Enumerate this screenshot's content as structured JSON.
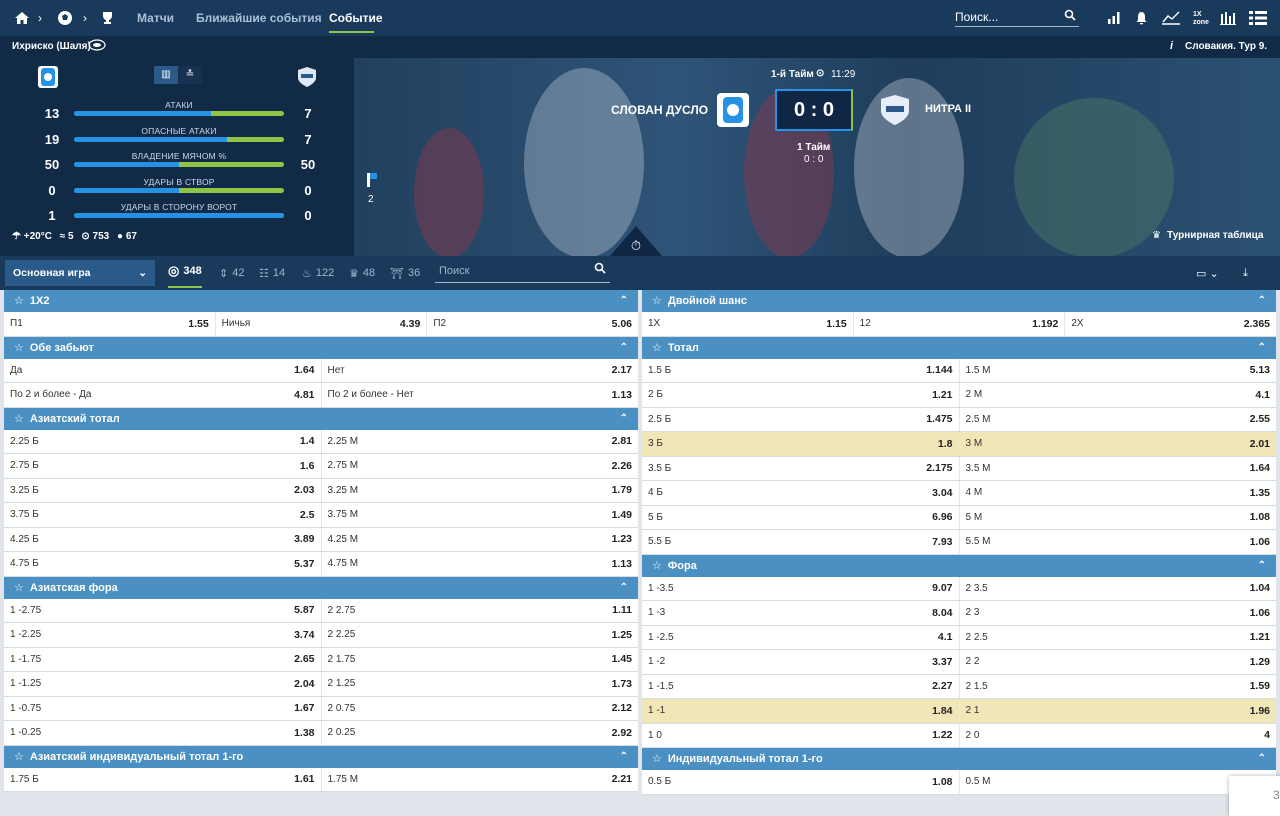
{
  "nav": {
    "links": [
      "Матчи",
      "Ближайшие события",
      "Событие"
    ],
    "search_placeholder": "Поиск..."
  },
  "hero": {
    "venue": "Ихриско (Шаля)",
    "league": "Словакия. Тур 9.",
    "stats": [
      {
        "label": "АТАКИ",
        "home": "13",
        "away": "7",
        "home_share": 0.65
      },
      {
        "label": "ОПАСНЫЕ АТАКИ",
        "home": "19",
        "away": "7",
        "home_share": 0.73
      },
      {
        "label": "ВЛАДЕНИЕ МЯЧОМ %",
        "home": "50",
        "away": "50",
        "home_share": 0.5
      },
      {
        "label": "УДАРЫ В СТВОР",
        "home": "0",
        "away": "0",
        "home_share": 0.5
      },
      {
        "label": "УДАРЫ В СТОРОНУ ВОРОТ",
        "home": "1",
        "away": "0",
        "home_share": 1.0
      }
    ],
    "weather": {
      "temp": "+20°C",
      "wind": "5",
      "pressure": "753",
      "humidity": "67"
    },
    "period": "1-й Тайм",
    "time": "11:29",
    "home_team": "СЛОВАН ДУСЛО",
    "away_team": "НИТРА II",
    "score": "0 : 0",
    "period_label": "1 Тайм",
    "period_score": "0 : 0",
    "corner_count": "2",
    "tournament_link": "Турнирная таблица"
  },
  "toolbar": {
    "game_select": "Основная игра",
    "counts": {
      "all": "348",
      "updown": "42",
      "stats": "14",
      "fire": "122",
      "cup": "48",
      "gate": "36"
    },
    "search_placeholder": "Поиск"
  },
  "left_markets": [
    {
      "title": "1X2",
      "cols": 3,
      "rows": [
        [
          [
            "П1",
            "1.55"
          ],
          [
            "Ничья",
            "4.39"
          ],
          [
            "П2",
            "5.06"
          ]
        ]
      ]
    },
    {
      "title": "Обе забьют",
      "cols": 2,
      "rows": [
        [
          [
            "Да",
            "1.64"
          ],
          [
            "Нет",
            "2.17"
          ]
        ],
        [
          [
            "По 2 и более - Да",
            "4.81"
          ],
          [
            "По 2 и более - Нет",
            "1.13"
          ]
        ]
      ]
    },
    {
      "title": "Азиатский тотал",
      "cols": 2,
      "rows": [
        [
          [
            "2.25 Б",
            "1.4"
          ],
          [
            "2.25 М",
            "2.81"
          ]
        ],
        [
          [
            "2.75 Б",
            "1.6"
          ],
          [
            "2.75 М",
            "2.26"
          ]
        ],
        [
          [
            "3.25 Б",
            "2.03"
          ],
          [
            "3.25 М",
            "1.79"
          ]
        ],
        [
          [
            "3.75 Б",
            "2.5"
          ],
          [
            "3.75 М",
            "1.49"
          ]
        ],
        [
          [
            "4.25 Б",
            "3.89"
          ],
          [
            "4.25 М",
            "1.23"
          ]
        ],
        [
          [
            "4.75 Б",
            "5.37"
          ],
          [
            "4.75 М",
            "1.13"
          ]
        ]
      ]
    },
    {
      "title": "Азиатская фора",
      "cols": 2,
      "rows": [
        [
          [
            "1 -2.75",
            "5.87"
          ],
          [
            "2 2.75",
            "1.11"
          ]
        ],
        [
          [
            "1 -2.25",
            "3.74"
          ],
          [
            "2 2.25",
            "1.25"
          ]
        ],
        [
          [
            "1 -1.75",
            "2.65"
          ],
          [
            "2 1.75",
            "1.45"
          ]
        ],
        [
          [
            "1 -1.25",
            "2.04"
          ],
          [
            "2 1.25",
            "1.73"
          ]
        ],
        [
          [
            "1 -0.75",
            "1.67"
          ],
          [
            "2 0.75",
            "2.12"
          ]
        ],
        [
          [
            "1 -0.25",
            "1.38"
          ],
          [
            "2 0.25",
            "2.92"
          ]
        ]
      ]
    },
    {
      "title": "Азиатский индивидуальный тотал 1-го",
      "cols": 2,
      "rows": [
        [
          [
            "1.75 Б",
            "1.61"
          ],
          [
            "1.75 М",
            "2.21"
          ]
        ]
      ]
    }
  ],
  "right_markets": [
    {
      "title": "Двойной шанс",
      "cols": 3,
      "rows": [
        [
          [
            "1X",
            "1.15"
          ],
          [
            "12",
            "1.192"
          ],
          [
            "2X",
            "2.365"
          ]
        ]
      ]
    },
    {
      "title": "Тотал",
      "cols": 2,
      "highlight": [
        3
      ],
      "rows": [
        [
          [
            "1.5 Б",
            "1.144"
          ],
          [
            "1.5 М",
            "5.13"
          ]
        ],
        [
          [
            "2 Б",
            "1.21"
          ],
          [
            "2 М",
            "4.1"
          ]
        ],
        [
          [
            "2.5 Б",
            "1.475"
          ],
          [
            "2.5 М",
            "2.55"
          ]
        ],
        [
          [
            "3 Б",
            "1.8"
          ],
          [
            "3 М",
            "2.01"
          ]
        ],
        [
          [
            "3.5 Б",
            "2.175"
          ],
          [
            "3.5 М",
            "1.64"
          ]
        ],
        [
          [
            "4 Б",
            "3.04"
          ],
          [
            "4 М",
            "1.35"
          ]
        ],
        [
          [
            "5 Б",
            "6.96"
          ],
          [
            "5 М",
            "1.08"
          ]
        ],
        [
          [
            "5.5 Б",
            "7.93"
          ],
          [
            "5.5 М",
            "1.06"
          ]
        ]
      ]
    },
    {
      "title": "Фора",
      "cols": 2,
      "highlight": [
        5
      ],
      "rows": [
        [
          [
            "1 -3.5",
            "9.07"
          ],
          [
            "2 3.5",
            "1.04"
          ]
        ],
        [
          [
            "1 -3",
            "8.04"
          ],
          [
            "2 3",
            "1.06"
          ]
        ],
        [
          [
            "1 -2.5",
            "4.1"
          ],
          [
            "2 2.5",
            "1.21"
          ]
        ],
        [
          [
            "1 -2",
            "3.37"
          ],
          [
            "2 2",
            "1.29"
          ]
        ],
        [
          [
            "1 -1.5",
            "2.27"
          ],
          [
            "2 1.5",
            "1.59"
          ]
        ],
        [
          [
            "1 -1",
            "1.84"
          ],
          [
            "2 1",
            "1.96"
          ]
        ],
        [
          [
            "1 0",
            "1.22"
          ],
          [
            "2 0",
            "4"
          ]
        ]
      ]
    },
    {
      "title": "Индивидуальный тотал 1-го",
      "cols": 2,
      "rows": [
        [
          [
            "0.5 Б",
            "1.08"
          ],
          [
            "0.5 М",
            ""
          ]
        ]
      ]
    }
  ]
}
